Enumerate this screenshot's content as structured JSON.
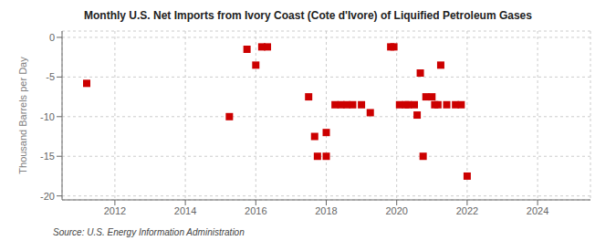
{
  "chart_data": {
    "type": "scatter",
    "title": "Monthly U.S. Net Imports from Ivory Coast (Cote d'Ivore) of Liquified Petroleum Gases",
    "ylabel": "Thousand Barrels per Day",
    "annotations": [
      "Source: U.S. Energy Information Administration"
    ],
    "color": "#cc0000",
    "marker": "square",
    "grid": true,
    "xlim": [
      2010.5,
      2025.5
    ],
    "ylim": [
      -20.5,
      0.8
    ],
    "xticks": [
      2012,
      2014,
      2016,
      2018,
      2020,
      2022,
      2024
    ],
    "yticks": [
      0,
      -5,
      -10,
      -15,
      -20
    ],
    "x": [
      2011.2,
      2015.25,
      2015.75,
      2016.0,
      2016.17,
      2016.33,
      2017.5,
      2017.67,
      2017.75,
      2018.0,
      2018.0,
      2018.25,
      2018.42,
      2018.58,
      2018.75,
      2019.0,
      2019.25,
      2019.83,
      2019.92,
      2020.08,
      2020.25,
      2020.33,
      2020.5,
      2020.58,
      2020.67,
      2020.83,
      2021.0,
      2021.08,
      2021.17,
      2021.25,
      2021.42,
      2021.67,
      2021.83,
      2022.0,
      2020.75
    ],
    "values": [
      -5.8,
      -10.0,
      -1.5,
      -3.5,
      -1.2,
      -1.2,
      -7.5,
      -12.5,
      -15.0,
      -15.0,
      -12.0,
      -8.5,
      -8.5,
      -8.5,
      -8.5,
      -8.5,
      -9.5,
      -1.2,
      -1.2,
      -8.5,
      -8.5,
      -8.5,
      -8.5,
      -9.8,
      -4.5,
      -7.5,
      -7.5,
      -8.5,
      -8.5,
      -3.5,
      -8.5,
      -8.5,
      -8.5,
      -17.5,
      -15.0
    ]
  }
}
